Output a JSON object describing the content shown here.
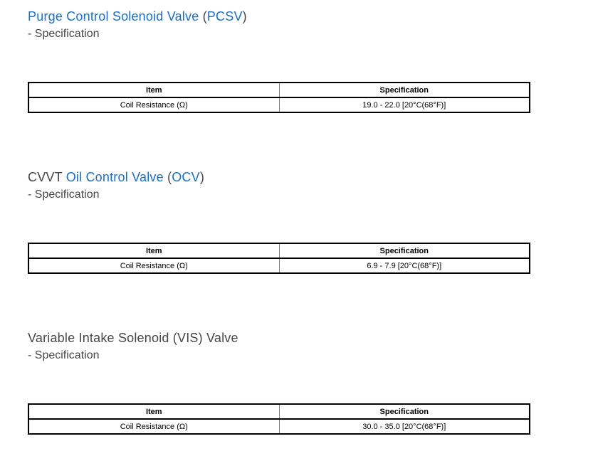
{
  "page": {
    "background": "#ffffff"
  },
  "colors": {
    "link": "#1c6fc4",
    "heading_text": "#474747",
    "table_border": "#000000",
    "table_column_divider": "#808080",
    "table_text": "#000000"
  },
  "sections": [
    {
      "heading_parts": [
        {
          "text": "Purge Control Solenoid Valve",
          "link": true
        },
        {
          "text": " (",
          "link": false
        },
        {
          "text": "PCSV",
          "link": true
        },
        {
          "text": ")",
          "link": false
        }
      ],
      "subheading": "- Specification",
      "table": {
        "headers": [
          "Item",
          "Specification"
        ],
        "rows": [
          [
            "Coil Resistance (Ω)",
            "19.0 - 22.0 [20°C(68°F)]"
          ]
        ]
      }
    },
    {
      "heading_parts": [
        {
          "text": "CVVT ",
          "link": false
        },
        {
          "text": "Oil Control Valve",
          "link": true
        },
        {
          "text": " (",
          "link": false
        },
        {
          "text": "OCV",
          "link": true
        },
        {
          "text": ")",
          "link": false
        }
      ],
      "subheading": "- Specification",
      "table": {
        "headers": [
          "Item",
          "Specification"
        ],
        "rows": [
          [
            "Coil Resistance (Ω)",
            "6.9 - 7.9 [20°C(68°F)]"
          ]
        ]
      }
    },
    {
      "heading_parts": [
        {
          "text": "Variable Intake Solenoid (VIS) Valve",
          "link": false
        }
      ],
      "subheading": "- Specification",
      "table": {
        "headers": [
          "Item",
          "Specification"
        ],
        "rows": [
          [
            "Coil Resistance (Ω)",
            "30.0 - 35.0 [20°C(68°F)]"
          ]
        ]
      }
    }
  ]
}
